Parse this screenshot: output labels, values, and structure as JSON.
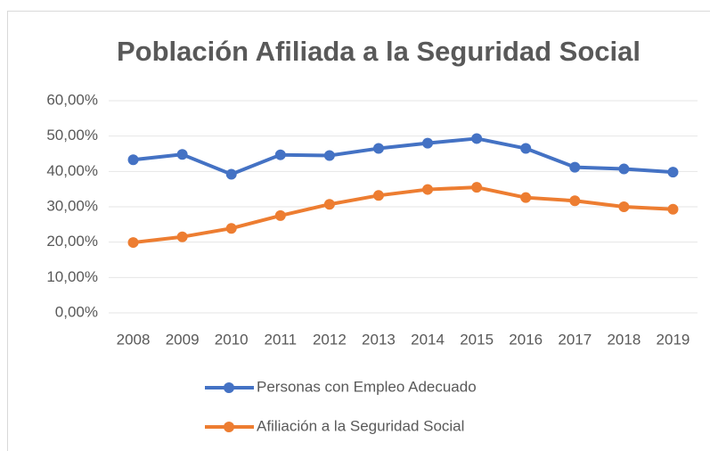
{
  "chart_data": {
    "type": "line",
    "title": "Población Afiliada a la Seguridad Social",
    "categories": [
      "2008",
      "2009",
      "2010",
      "2011",
      "2012",
      "2013",
      "2014",
      "2015",
      "2016",
      "2017",
      "2018",
      "2019"
    ],
    "series": [
      {
        "name": "Personas con Empleo Adecuado",
        "color": "#4472c4",
        "values": [
          43.3,
          44.8,
          39.2,
          44.7,
          44.5,
          46.5,
          48.0,
          49.3,
          46.5,
          41.2,
          40.7,
          39.8
        ]
      },
      {
        "name": "Afiliación a la Seguridad Social",
        "color": "#ed7d31",
        "values": [
          19.9,
          21.5,
          23.9,
          27.5,
          30.7,
          33.2,
          34.9,
          35.5,
          32.6,
          31.7,
          30.0,
          29.3
        ]
      }
    ],
    "ylim": [
      0,
      60
    ],
    "yticks": [
      {
        "value": 0,
        "label": "0,00%"
      },
      {
        "value": 10,
        "label": "10,00%"
      },
      {
        "value": 20,
        "label": "20,00%"
      },
      {
        "value": 30,
        "label": "30,00%"
      },
      {
        "value": 40,
        "label": "40,00%"
      },
      {
        "value": 50,
        "label": "50,00%"
      },
      {
        "value": 60,
        "label": "60,00%"
      }
    ],
    "grid": true
  }
}
